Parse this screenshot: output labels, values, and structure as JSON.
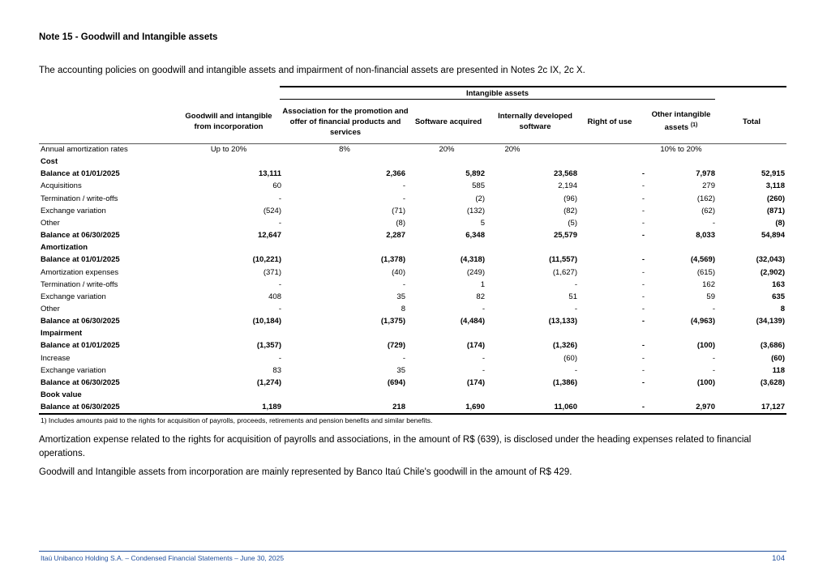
{
  "header": {
    "title": "Note 15 - Goodwill and Intangible assets",
    "intro": "The accounting policies on goodwill and intangible assets and impairment of non-financial assets are presented in Notes 2c IX, 2c X."
  },
  "table": {
    "group_header": "Intangible assets",
    "columns": [
      "Goodwill and intangible from incorporation",
      "Association for the promotion and offer of financial products and services",
      "Software acquired",
      "Internally developed software",
      "Right of use",
      "Other intangible assets",
      "Total"
    ],
    "column_note": "(1)",
    "rates": {
      "label": "Annual amortization rates",
      "values": [
        "Up to 20%",
        "8%",
        "20%",
        "20%",
        "10% to 20%"
      ]
    },
    "rows": [
      [
        "Cost"
      ],
      [
        "Balance at 01/01/2025",
        "13,111",
        "2,366",
        "5,892",
        "23,568",
        "-",
        "7,978",
        "52,915"
      ],
      [
        "Acquisitions",
        "60",
        "-",
        "585",
        "2,194",
        "-",
        "279",
        "3,118"
      ],
      [
        "Termination / write-offs",
        "-",
        "-",
        "(2)",
        "(96)",
        "-",
        "(162)",
        "(260)"
      ],
      [
        "Exchange variation",
        "(524)",
        "(71)",
        "(132)",
        "(82)",
        "-",
        "(62)",
        "(871)"
      ],
      [
        "Other",
        "-",
        "(8)",
        "5",
        "(5)",
        "-",
        "-",
        "(8)"
      ],
      [
        "Balance at 06/30/2025",
        "12,647",
        "2,287",
        "6,348",
        "25,579",
        "-",
        "8,033",
        "54,894"
      ],
      [
        "Amortization"
      ],
      [
        "Balance at 01/01/2025",
        "(10,221)",
        "(1,378)",
        "(4,318)",
        "(11,557)",
        "-",
        "(4,569)",
        "(32,043)"
      ],
      [
        "Amortization expenses",
        "(371)",
        "(40)",
        "(249)",
        "(1,627)",
        "-",
        "(615)",
        "(2,902)"
      ],
      [
        "Termination / write-offs",
        "-",
        "-",
        "1",
        "-",
        "-",
        "162",
        "163"
      ],
      [
        "Exchange variation",
        "408",
        "35",
        "82",
        "51",
        "-",
        "59",
        "635"
      ],
      [
        "Other",
        "-",
        "8",
        "-",
        "-",
        "-",
        "-",
        "8"
      ],
      [
        "Balance at 06/30/2025",
        "(10,184)",
        "(1,375)",
        "(4,484)",
        "(13,133)",
        "-",
        "(4,963)",
        "(34,139)"
      ],
      [
        "Impairment"
      ],
      [
        "Balance at 01/01/2025",
        "(1,357)",
        "(729)",
        "(174)",
        "(1,326)",
        "-",
        "(100)",
        "(3,686)"
      ],
      [
        "Increase",
        "-",
        "-",
        "-",
        "(60)",
        "-",
        "-",
        "(60)"
      ],
      [
        "Exchange variation",
        "83",
        "35",
        "-",
        "-",
        "-",
        "-",
        "118"
      ],
      [
        "Balance at 06/30/2025",
        "(1,274)",
        "(694)",
        "(174)",
        "(1,386)",
        "-",
        "(100)",
        "(3,628)"
      ],
      [
        "Book value"
      ],
      [
        "Balance at 06/30/2025",
        "1,189",
        "218",
        "1,690",
        "11,060",
        "-",
        "2,970",
        "17,127"
      ]
    ],
    "footnote": "1) Includes amounts paid to the rights for acquisition of payrolls, proceeds, retirements and pension benefits and similar benefits."
  },
  "paragraphs": [
    "Amortization expense related to the rights for acquisition of payrolls and associations, in the amount of R$ (639), is disclosed under the heading expenses related to financial operations.",
    "Goodwill and Intangible assets from incorporation are mainly represented by Banco Itaú Chile's goodwill in the amount of R$ 429."
  ],
  "footer": {
    "text": "Itaú Unibanco Holding S.A. – Condensed Financial Statements – June 30, 2025",
    "page": "104"
  }
}
